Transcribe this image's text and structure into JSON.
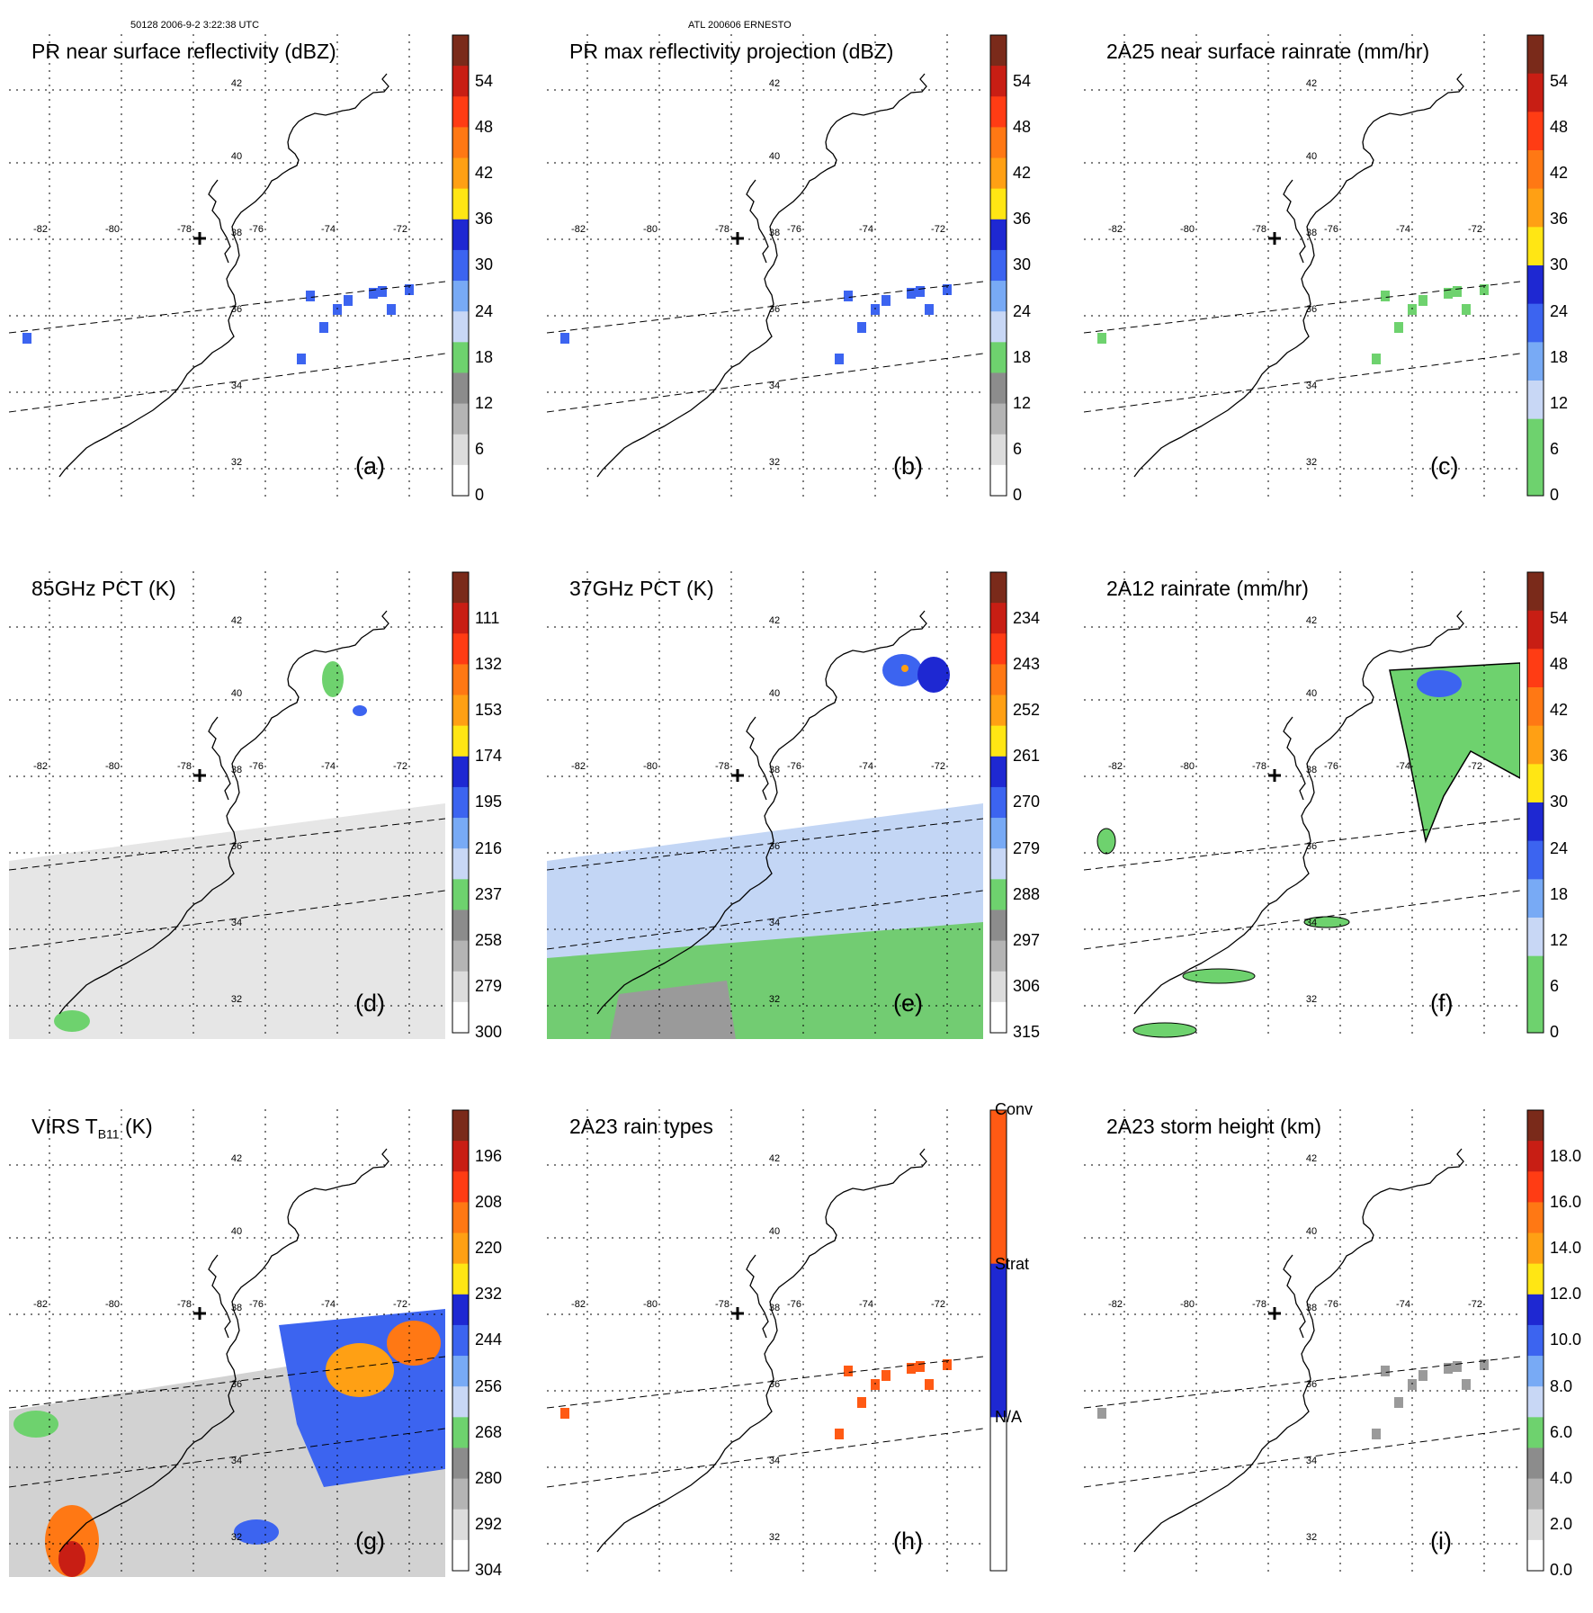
{
  "header": {
    "left": "50128 2006-9-2 3:22:38 UTC",
    "center": "ATL 200606 ERNESTO"
  },
  "map": {
    "lat_labels": [
      "42",
      "40",
      "38",
      "36",
      "34",
      "32"
    ],
    "lon_labels": [
      "-82",
      "-80",
      "-78",
      "-76",
      "-74",
      "-72"
    ]
  },
  "panels": [
    {
      "id": "a",
      "title": "PR near surface reflectivity (dBZ)",
      "label": "(a)",
      "ticks": [
        "54",
        "48",
        "42",
        "36",
        "30",
        "24",
        "18",
        "12",
        "6",
        "0"
      ],
      "colors": [
        "#7a2a1a",
        "#c81e14",
        "#ff3c14",
        "#ff7814",
        "#ffa014",
        "#ffe614",
        "#1e28d2",
        "#3c64f0",
        "#78aaf5",
        "#c8d7f5",
        "#6ed26e",
        "#8c8c8c",
        "#b4b4b4",
        "#dcdcdc",
        "#ffffff"
      ]
    },
    {
      "id": "b",
      "title": "PR max reflectivity projection (dBZ)",
      "label": "(b)",
      "ticks": [
        "54",
        "48",
        "42",
        "36",
        "30",
        "24",
        "18",
        "12",
        "6",
        "0"
      ],
      "colors": [
        "#7a2a1a",
        "#c81e14",
        "#ff3c14",
        "#ff7814",
        "#ffa014",
        "#ffe614",
        "#1e28d2",
        "#3c64f0",
        "#78aaf5",
        "#c8d7f5",
        "#6ed26e",
        "#8c8c8c",
        "#b4b4b4",
        "#dcdcdc",
        "#ffffff"
      ]
    },
    {
      "id": "c",
      "title": "2A25 near surface rainrate (mm/hr)",
      "label": "(c)",
      "ticks": [
        "54",
        "48",
        "42",
        "36",
        "30",
        "24",
        "18",
        "12",
        "6",
        "0"
      ],
      "colors": [
        "#7a2a1a",
        "#c81e14",
        "#ff3c14",
        "#ff7814",
        "#ffa014",
        "#ffe614",
        "#1e28d2",
        "#3c64f0",
        "#78aaf5",
        "#c8d7f5",
        "#6ed26e",
        "#6ed26e"
      ]
    },
    {
      "id": "d",
      "title": "85GHz PCT (K)",
      "label": "(d)",
      "ticks": [
        "111",
        "132",
        "153",
        "174",
        "195",
        "216",
        "237",
        "258",
        "279",
        "300"
      ],
      "colors": [
        "#7a2a1a",
        "#c81e14",
        "#ff3c14",
        "#ff7814",
        "#ffa014",
        "#ffe614",
        "#1e28d2",
        "#3c64f0",
        "#78aaf5",
        "#c8d7f5",
        "#6ed26e",
        "#8c8c8c",
        "#b4b4b4",
        "#dcdcdc",
        "#ffffff"
      ]
    },
    {
      "id": "e",
      "title": "37GHz PCT (K)",
      "label": "(e)",
      "ticks": [
        "234",
        "243",
        "252",
        "261",
        "270",
        "279",
        "288",
        "297",
        "306",
        "315"
      ],
      "colors": [
        "#7a2a1a",
        "#c81e14",
        "#ff3c14",
        "#ff7814",
        "#ffa014",
        "#ffe614",
        "#1e28d2",
        "#3c64f0",
        "#78aaf5",
        "#c8d7f5",
        "#6ed26e",
        "#8c8c8c",
        "#b4b4b4",
        "#dcdcdc",
        "#ffffff"
      ]
    },
    {
      "id": "f",
      "title": "2A12 rainrate (mm/hr)",
      "label": "(f)",
      "ticks": [
        "54",
        "48",
        "42",
        "36",
        "30",
        "24",
        "18",
        "12",
        "6",
        "0"
      ],
      "colors": [
        "#7a2a1a",
        "#c81e14",
        "#ff3c14",
        "#ff7814",
        "#ffa014",
        "#ffe614",
        "#1e28d2",
        "#3c64f0",
        "#78aaf5",
        "#c8d7f5",
        "#6ed26e",
        "#6ed26e"
      ]
    },
    {
      "id": "g",
      "title": "VIRS T",
      "title_sub": "B11",
      "title_suffix": " (K)",
      "label": "(g)",
      "ticks": [
        "196",
        "208",
        "220",
        "232",
        "244",
        "256",
        "268",
        "280",
        "292",
        "304"
      ],
      "colors": [
        "#7a2a1a",
        "#c81e14",
        "#ff3c14",
        "#ff7814",
        "#ffa014",
        "#ffe614",
        "#1e28d2",
        "#3c64f0",
        "#78aaf5",
        "#c8d7f5",
        "#6ed26e",
        "#8c8c8c",
        "#b4b4b4",
        "#dcdcdc",
        "#ffffff"
      ]
    },
    {
      "id": "h",
      "title": "2A23 rain types",
      "label": "(h)",
      "ticks": [
        "Conv",
        "Strat",
        "N/A"
      ],
      "colors": [
        "#ff5a14",
        "#1e28d2",
        "#ffffff"
      ]
    },
    {
      "id": "i",
      "title": "2A23 storm height (km)",
      "label": "(i)",
      "ticks": [
        "18.0",
        "16.0",
        "14.0",
        "12.0",
        "10.0",
        "8.0",
        "6.0",
        "4.0",
        "2.0",
        "0.0"
      ],
      "colors": [
        "#7a2a1a",
        "#c81e14",
        "#ff3c14",
        "#ff7814",
        "#ffa014",
        "#ffe614",
        "#1e28d2",
        "#3c64f0",
        "#78aaf5",
        "#c8d7f5",
        "#6ed26e",
        "#8c8c8c",
        "#b4b4b4",
        "#dcdcdc",
        "#ffffff"
      ]
    }
  ]
}
